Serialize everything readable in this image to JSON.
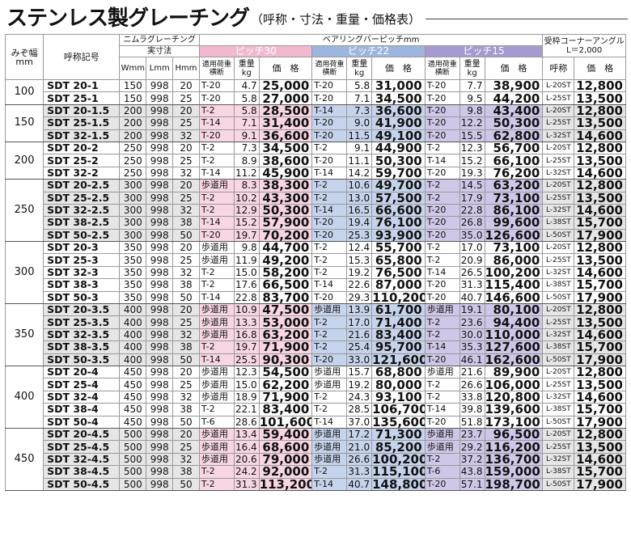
{
  "title": {
    "main": "ステンレス製グレーチング",
    "sub": "（呼称・寸法・重量・価格表）"
  },
  "headers": {
    "width": "みぞ幅\nmm",
    "name": "呼称記号",
    "nimura": "ニムラグレーチング",
    "dims": "実寸法",
    "W": "Wmm",
    "L": "Lmm",
    "H": "Hmm",
    "bearing": "ベアリングバーピッチmm",
    "p30": "ピッチ30",
    "p22": "ピッチ22",
    "p15": "ピッチ15",
    "load": "適用荷重\n横断",
    "weight": "重量\nkg",
    "price": "価　格",
    "angle": "受枠コーナーアングル\nL＝2,000",
    "angle_name": "呼称",
    "angle_price": "価　格"
  },
  "groups": [
    {
      "width": "100",
      "rows": [
        [
          "SDT 20-1",
          "150",
          "998",
          "20",
          "T-20",
          "4.7",
          "25,000",
          "T-20",
          "5.8",
          "31,000",
          "T-20",
          "7.7",
          "38,900",
          "L-20ST",
          "12,800"
        ],
        [
          "SDT 25-1",
          "150",
          "998",
          "25",
          "T-20",
          "5.8",
          "27,000",
          "T-20",
          "7.1",
          "34,500",
          "T-20",
          "9.5",
          "44,200",
          "L-25ST",
          "13,500"
        ]
      ]
    },
    {
      "width": "150",
      "rows": [
        [
          "SDT 20-1.5",
          "200",
          "998",
          "20",
          "T-2",
          "5.8",
          "28,500",
          "T-14",
          "7.3",
          "36,600",
          "T-20",
          "9.8",
          "43,400",
          "L-20ST",
          "12,800"
        ],
        [
          "SDT 25-1.5",
          "200",
          "998",
          "25",
          "T-14",
          "7.1",
          "31,400",
          "T-20",
          "9.0",
          "41,900",
          "T-20",
          "12.2",
          "50,300",
          "L-25ST",
          "13,500"
        ],
        [
          "SDT 32-1.5",
          "200",
          "998",
          "32",
          "T-20",
          "9.1",
          "36,600",
          "T-20",
          "11.5",
          "49,100",
          "T-20",
          "15.5",
          "62,800",
          "L-32ST",
          "14,600"
        ]
      ]
    },
    {
      "width": "200",
      "rows": [
        [
          "SDT 20-2",
          "250",
          "998",
          "20",
          "T-2",
          "7.3",
          "34,500",
          "T-2",
          "9.1",
          "44,900",
          "T-2",
          "12.3",
          "56,700",
          "L-20ST",
          "12,800"
        ],
        [
          "SDT 25-2",
          "250",
          "998",
          "25",
          "T-2",
          "8.9",
          "38,600",
          "T-20",
          "11.1",
          "50,300",
          "T-14",
          "15.2",
          "66,100",
          "L-25ST",
          "13,500"
        ],
        [
          "SDT 32-2",
          "250",
          "998",
          "32",
          "T-14",
          "11.2",
          "45,900",
          "T-14",
          "14.2",
          "59,700",
          "T-20",
          "19.3",
          "76,200",
          "L-32ST",
          "14,600"
        ]
      ]
    },
    {
      "width": "250",
      "rows": [
        [
          "SDT 20-2.5",
          "300",
          "998",
          "20",
          "歩道用",
          "8.3",
          "38,300",
          "T-2",
          "10.6",
          "49,700",
          "T-2",
          "14.5",
          "63,200",
          "L-20ST",
          "12,800"
        ],
        [
          "SDT 25-2.5",
          "300",
          "998",
          "25",
          "T-2",
          "10.2",
          "43,300",
          "T-2",
          "13.0",
          "57,500",
          "T-2",
          "17.9",
          "73,100",
          "L-25ST",
          "13,500"
        ],
        [
          "SDT 32-2.5",
          "300",
          "998",
          "32",
          "T-2",
          "12.9",
          "50,300",
          "T-14",
          "16.5",
          "66,600",
          "T-20",
          "22.8",
          "86,100",
          "L-32ST",
          "14,600"
        ],
        [
          "SDT 38-2.5",
          "300",
          "998",
          "38",
          "T-14",
          "15.2",
          "57,900",
          "T-20",
          "19.4",
          "76,100",
          "T-20",
          "26.8",
          "99,600",
          "L-38ST",
          "15,700"
        ],
        [
          "SDT 50-2.5",
          "300",
          "998",
          "50",
          "T-20",
          "19.7",
          "70,200",
          "T-20",
          "25.3",
          "93,900",
          "T-20",
          "35.0",
          "126,600",
          "L-50ST",
          "17,900"
        ]
      ]
    },
    {
      "width": "300",
      "rows": [
        [
          "SDT 20-3",
          "350",
          "998",
          "20",
          "歩道用",
          "9.8",
          "44,700",
          "T-2",
          "12.4",
          "55,700",
          "T-2",
          "17.0",
          "73,100",
          "L-20ST",
          "12,800"
        ],
        [
          "SDT 25-3",
          "350",
          "998",
          "25",
          "歩道用",
          "11.9",
          "49,200",
          "T-2",
          "15.3",
          "65,800",
          "T-2",
          "20.9",
          "86,000",
          "L-25ST",
          "13,500"
        ],
        [
          "SDT 32-3",
          "350",
          "998",
          "32",
          "T-2",
          "15.0",
          "58,200",
          "T-2",
          "19.2",
          "76,500",
          "T-14",
          "26.5",
          "100,200",
          "L-32ST",
          "14,600"
        ],
        [
          "SDT 38-3",
          "350",
          "998",
          "38",
          "T-2",
          "17.6",
          "66,500",
          "T-14",
          "22.6",
          "87,000",
          "T-20",
          "31.3",
          "115,400",
          "L-38ST",
          "15,700"
        ],
        [
          "SDT 50-3",
          "350",
          "998",
          "50",
          "T-14",
          "22.8",
          "83,700",
          "T-20",
          "29.3",
          "110,200",
          "T-20",
          "40.7",
          "146,600",
          "L-50ST",
          "17,900"
        ]
      ]
    },
    {
      "width": "350",
      "rows": [
        [
          "SDT 20-3.5",
          "400",
          "998",
          "20",
          "歩道用",
          "10.9",
          "47,500",
          "歩道用",
          "13.9",
          "61,700",
          "歩道用",
          "19.1",
          "80,100",
          "L-20ST",
          "12,800"
        ],
        [
          "SDT 25-3.5",
          "400",
          "998",
          "25",
          "歩道用",
          "13.3",
          "53,000",
          "T-2",
          "17.0",
          "71,400",
          "T-2",
          "23.6",
          "94,400",
          "L-25ST",
          "13,500"
        ],
        [
          "SDT 32-3.5",
          "400",
          "998",
          "32",
          "歩道用",
          "16.8",
          "63,200",
          "T-2",
          "21.6",
          "83,400",
          "T-2",
          "30.0",
          "110,000",
          "L-32ST",
          "14,600"
        ],
        [
          "SDT 38-3.5",
          "400",
          "998",
          "38",
          "T-2",
          "19.7",
          "71,900",
          "T-2",
          "25.4",
          "95,700",
          "T-14",
          "35.3",
          "127,600",
          "L-38ST",
          "15,700"
        ],
        [
          "SDT 50-3.5",
          "400",
          "998",
          "50",
          "T-14",
          "25.5",
          "90,300",
          "T-20",
          "33.0",
          "121,600",
          "T-20",
          "46.1",
          "162,600",
          "L-50ST",
          "17,900"
        ]
      ]
    },
    {
      "width": "400",
      "rows": [
        [
          "SDT 20-4",
          "450",
          "998",
          "20",
          "歩道用",
          "12.3",
          "54,500",
          "歩道用",
          "15.7",
          "68,800",
          "歩道用",
          "21.6",
          "89,900",
          "L-20ST",
          "12,800"
        ],
        [
          "SDT 25-4",
          "450",
          "998",
          "25",
          "歩道用",
          "15.0",
          "62,200",
          "歩道用",
          "19.2",
          "80,000",
          "T-2",
          "26.6",
          "106,000",
          "L-25ST",
          "13,500"
        ],
        [
          "SDT 32-4",
          "450",
          "998",
          "32",
          "歩道用",
          "18.9",
          "71,900",
          "T-2",
          "24.3",
          "93,100",
          "T-2",
          "33.8",
          "120,800",
          "L-32ST",
          "14,600"
        ],
        [
          "SDT 38-4",
          "450",
          "998",
          "38",
          "T-2",
          "22.1",
          "83,400",
          "T-2",
          "28.5",
          "106,700",
          "T-14",
          "39.8",
          "139,600",
          "L-38ST",
          "15,700"
        ],
        [
          "SDT 50-4",
          "450",
          "998",
          "50",
          "T-6",
          "28.6",
          "101,600",
          "T-14",
          "37.0",
          "135,600",
          "T-20",
          "51.8",
          "173,100",
          "L-50ST",
          "17,900"
        ]
      ]
    },
    {
      "width": "450",
      "rows": [
        [
          "SDT 20-4.5",
          "500",
          "998",
          "20",
          "歩道用",
          "13.4",
          "59,400",
          "歩道用",
          "17.2",
          "71,300",
          "歩道用",
          "23.7",
          "96,500",
          "L-20ST",
          "12,800"
        ],
        [
          "SDT 25-4.5",
          "500",
          "998",
          "25",
          "歩道用",
          "16.4",
          "68,600",
          "歩道用",
          "21.0",
          "85,200",
          "歩道用",
          "29.2",
          "116,200",
          "L-25ST",
          "13,500"
        ],
        [
          "SDT 32-4.5",
          "500",
          "998",
          "32",
          "歩道用",
          "20.6",
          "79,000",
          "歩道用",
          "26.6",
          "100,200",
          "T-2",
          "37.2",
          "136,700",
          "L-32ST",
          "14,600"
        ],
        [
          "SDT 38-4.5",
          "500",
          "998",
          "38",
          "T-2",
          "24.2",
          "92,000",
          "T-2",
          "31.3",
          "115,100",
          "T-6",
          "43.8",
          "159,000",
          "L-38ST",
          "15,700"
        ],
        [
          "SDT 50-4.5",
          "500",
          "998",
          "50",
          "T-2",
          "31.3",
          "113,200",
          "T-14",
          "40.7",
          "148,800",
          "T-20",
          "57.1",
          "198,700",
          "L-50ST",
          "17,900"
        ]
      ]
    }
  ]
}
